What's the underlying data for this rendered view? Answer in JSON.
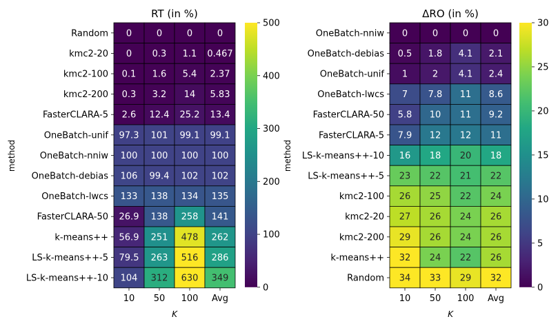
{
  "chart_data": [
    {
      "type": "heatmap",
      "title": "RT (in %)",
      "xlabel": "K",
      "ylabel": "method",
      "columns": [
        "10",
        "50",
        "100",
        "Avg"
      ],
      "rows": [
        "Random",
        "kmc2-20",
        "kmc2-100",
        "kmc2-200",
        "FasterCLARA-5",
        "OneBatch-unif",
        "OneBatch-nniw",
        "OneBatch-debias",
        "OneBatch-lwcs",
        "FasterCLARA-50",
        "k-means++",
        "LS-k-means++-5",
        "LS-k-means++-10"
      ],
      "values": [
        [
          0,
          0,
          0,
          0
        ],
        [
          0,
          0.3,
          1.1,
          0.467
        ],
        [
          0.1,
          1.6,
          5.4,
          2.37
        ],
        [
          0.3,
          3.2,
          14,
          5.83
        ],
        [
          2.6,
          12.4,
          25.2,
          13.4
        ],
        [
          97.3,
          101,
          99.1,
          99.1
        ],
        [
          100,
          100,
          100,
          100
        ],
        [
          106,
          99.4,
          102,
          102
        ],
        [
          133,
          138,
          134,
          135
        ],
        [
          26.9,
          138,
          258,
          141
        ],
        [
          56.9,
          251,
          478,
          262
        ],
        [
          79.5,
          263,
          516,
          286
        ],
        [
          104,
          312,
          630,
          349
        ]
      ],
      "colorbar": {
        "min": 0,
        "max": 500,
        "ticks": [
          0,
          100,
          200,
          300,
          400,
          500
        ]
      },
      "colormap": "viridis"
    },
    {
      "type": "heatmap",
      "title": "ΔRO (in %)",
      "xlabel": "K",
      "ylabel": "method",
      "columns": [
        "10",
        "50",
        "100",
        "Avg"
      ],
      "rows": [
        "OneBatch-nniw",
        "OneBatch-debias",
        "OneBatch-unif",
        "OneBatch-lwcs",
        "FasterCLARA-50",
        "FasterCLARA-5",
        "LS-k-means++-10",
        "LS-k-means++-5",
        "kmc2-100",
        "kmc2-20",
        "kmc2-200",
        "k-means++",
        "Random"
      ],
      "values": [
        [
          0,
          0,
          0,
          0
        ],
        [
          0.5,
          1.8,
          4.1,
          2.1
        ],
        [
          1,
          2,
          4.1,
          2.4
        ],
        [
          7,
          7.8,
          11,
          8.6
        ],
        [
          5.8,
          10,
          11,
          9.2
        ],
        [
          7.9,
          12,
          12,
          11
        ],
        [
          16,
          18,
          20,
          18
        ],
        [
          23,
          22,
          21,
          22
        ],
        [
          26,
          25,
          22,
          24
        ],
        [
          27,
          26,
          24,
          26
        ],
        [
          29,
          26,
          24,
          26
        ],
        [
          32,
          24,
          22,
          26
        ],
        [
          34,
          33,
          29,
          32
        ]
      ],
      "colorbar": {
        "min": 0,
        "max": 30,
        "ticks": [
          0,
          5,
          10,
          15,
          20,
          25,
          30
        ]
      },
      "colormap": "viridis"
    }
  ]
}
